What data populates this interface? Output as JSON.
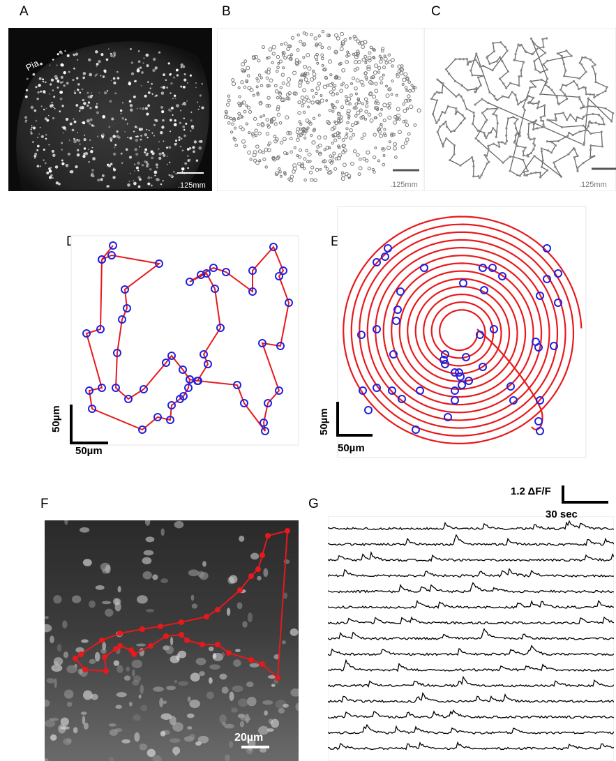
{
  "figure": {
    "panels": [
      {
        "letter": "A",
        "pia_label": "Pia",
        "scale_label": ".125mm"
      },
      {
        "letter": "B",
        "scale_label": ".125mm"
      },
      {
        "letter": "C",
        "scale_label": ".125mm"
      },
      {
        "letter": "D",
        "scale_v": "50µm",
        "scale_h": "50µm"
      },
      {
        "letter": "E",
        "scale_v": "50µm",
        "scale_h": "50µm"
      },
      {
        "letter": "F",
        "scale_label": "20µm"
      },
      {
        "letter": "G",
        "scale_y": "1.2 ΔF/F",
        "scale_x": "30 sec"
      }
    ],
    "colors": {
      "path": "#e8191c",
      "cell_ring": "#2020e0",
      "trace": "#000000"
    }
  }
}
